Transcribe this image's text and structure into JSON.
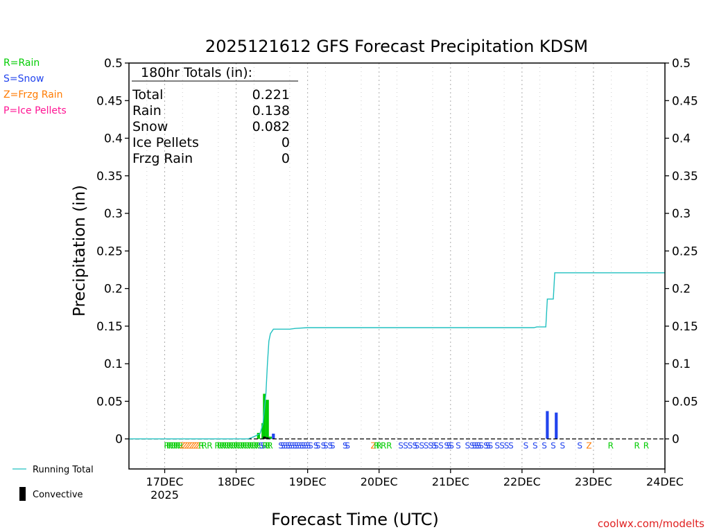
{
  "chart_data": {
    "type": "bar",
    "title": "2025121612 GFS Forecast Precipitation KDSM",
    "xlabel": "Forecast Time (UTC)",
    "ylabel": "Precipitation (in)",
    "ylim": [
      -0.04,
      0.5
    ],
    "y_ticks": [
      0,
      0.05,
      0.1,
      0.15,
      0.2,
      0.25,
      0.3,
      0.35,
      0.4,
      0.45,
      0.5
    ],
    "y_tick_labels": [
      "0",
      "0.05",
      "0.1",
      "0.15",
      "0.2",
      "0.25",
      "0.3",
      "0.35",
      "0.4",
      "0.45",
      "0.5"
    ],
    "x_unit": "hours since 2025-12-16 12 UTC",
    "xlim": [
      0,
      180
    ],
    "x_ticks": [
      {
        "x": 12,
        "label": "17DEC",
        "sublabel": "2025"
      },
      {
        "x": 36,
        "label": "18DEC",
        "sublabel": ""
      },
      {
        "x": 60,
        "label": "19DEC",
        "sublabel": ""
      },
      {
        "x": 84,
        "label": "20DEC",
        "sublabel": ""
      },
      {
        "x": 108,
        "label": "21DEC",
        "sublabel": ""
      },
      {
        "x": 132,
        "label": "22DEC",
        "sublabel": ""
      },
      {
        "x": 156,
        "label": "23DEC",
        "sublabel": ""
      },
      {
        "x": 180,
        "label": "24DEC",
        "sublabel": ""
      }
    ],
    "grid": true,
    "series": [
      {
        "name": "Running Total",
        "kind": "line",
        "color": "#20c0c0",
        "points": [
          [
            0,
            0
          ],
          [
            40,
            0
          ],
          [
            42,
            0.003
          ],
          [
            43,
            0.005
          ],
          [
            44,
            0.007
          ],
          [
            45,
            0.02
          ],
          [
            46,
            0.06
          ],
          [
            46.5,
            0.1
          ],
          [
            47,
            0.13
          ],
          [
            47.5,
            0.14
          ],
          [
            48.5,
            0.146
          ],
          [
            54,
            0.146
          ],
          [
            56,
            0.147
          ],
          [
            60,
            0.148
          ],
          [
            120,
            0.148
          ],
          [
            136,
            0.148
          ],
          [
            137,
            0.149
          ],
          [
            140,
            0.149
          ],
          [
            140.5,
            0.186
          ],
          [
            142.5,
            0.186
          ],
          [
            143,
            0.221
          ],
          [
            180,
            0.221
          ]
        ]
      },
      {
        "name": "Rain",
        "kind": "bar",
        "color": "#00cc00",
        "bars": [
          [
            43.5,
            0.008
          ],
          [
            45,
            0.021
          ],
          [
            45.5,
            0.06
          ],
          [
            46.5,
            0.052
          ],
          [
            47.5,
            0.003
          ]
        ]
      },
      {
        "name": "Snow",
        "kind": "bar",
        "color": "#2244ee",
        "bars": [
          [
            48.5,
            0.007
          ],
          [
            140.5,
            0.037
          ],
          [
            143.5,
            0.035
          ]
        ]
      },
      {
        "name": "Convective",
        "kind": "bar",
        "color": "#000000",
        "bars": [
          [
            45.5,
            0.003
          ],
          [
            46.5,
            0.002
          ]
        ]
      }
    ],
    "ptype_strip": {
      "colors": {
        "R": "#00cc00",
        "S": "#2244ee",
        "Z": "#ff7a00",
        "P": "#ff1493"
      },
      "marks": [
        {
          "x": 12.7,
          "t": "R"
        },
        {
          "x": 13.5,
          "t": "R"
        },
        {
          "x": 14.2,
          "t": "R"
        },
        {
          "x": 15.0,
          "t": "R"
        },
        {
          "x": 15.8,
          "t": "R"
        },
        {
          "x": 16.5,
          "t": "R"
        },
        {
          "x": 17.3,
          "t": "R"
        },
        {
          "x": 18.0,
          "t": "Z"
        },
        {
          "x": 18.8,
          "t": "Z"
        },
        {
          "x": 19.6,
          "t": "Z"
        },
        {
          "x": 20.3,
          "t": "Z"
        },
        {
          "x": 21.1,
          "t": "Z"
        },
        {
          "x": 21.8,
          "t": "Z"
        },
        {
          "x": 22.6,
          "t": "Z"
        },
        {
          "x": 23.3,
          "t": "Z"
        },
        {
          "x": 24.3,
          "t": "R"
        },
        {
          "x": 25.3,
          "t": "R"
        },
        {
          "x": 27.1,
          "t": "R"
        },
        {
          "x": 29.7,
          "t": "R"
        },
        {
          "x": 30.5,
          "t": "R"
        },
        {
          "x": 31.3,
          "t": "R"
        },
        {
          "x": 32.0,
          "t": "R"
        },
        {
          "x": 32.8,
          "t": "R"
        },
        {
          "x": 33.6,
          "t": "R"
        },
        {
          "x": 34.3,
          "t": "R"
        },
        {
          "x": 35.1,
          "t": "R"
        },
        {
          "x": 35.9,
          "t": "R"
        },
        {
          "x": 36.6,
          "t": "R"
        },
        {
          "x": 37.4,
          "t": "R"
        },
        {
          "x": 38.2,
          "t": "R"
        },
        {
          "x": 38.9,
          "t": "R"
        },
        {
          "x": 39.7,
          "t": "R"
        },
        {
          "x": 40.5,
          "t": "R"
        },
        {
          "x": 41.2,
          "t": "R"
        },
        {
          "x": 42.0,
          "t": "R"
        },
        {
          "x": 42.8,
          "t": "R"
        },
        {
          "x": 43.5,
          "t": "R"
        },
        {
          "x": 44.3,
          "t": "S"
        },
        {
          "x": 45.1,
          "t": "S"
        },
        {
          "x": 45.8,
          "t": "R"
        },
        {
          "x": 46.6,
          "t": "R"
        },
        {
          "x": 47.4,
          "t": "R"
        },
        {
          "x": 51.0,
          "t": "S"
        },
        {
          "x": 51.7,
          "t": "S"
        },
        {
          "x": 52.5,
          "t": "S"
        },
        {
          "x": 53.3,
          "t": "S"
        },
        {
          "x": 54.0,
          "t": "S"
        },
        {
          "x": 54.8,
          "t": "S"
        },
        {
          "x": 55.6,
          "t": "S"
        },
        {
          "x": 56.3,
          "t": "S"
        },
        {
          "x": 57.1,
          "t": "S"
        },
        {
          "x": 57.9,
          "t": "S"
        },
        {
          "x": 58.6,
          "t": "S"
        },
        {
          "x": 59.4,
          "t": "S"
        },
        {
          "x": 60.2,
          "t": "S"
        },
        {
          "x": 61.0,
          "t": "S"
        },
        {
          "x": 62.8,
          "t": "S"
        },
        {
          "x": 63.5,
          "t": "S"
        },
        {
          "x": 65.3,
          "t": "S"
        },
        {
          "x": 66.1,
          "t": "S"
        },
        {
          "x": 67.6,
          "t": "S"
        },
        {
          "x": 68.4,
          "t": "S"
        },
        {
          "x": 72.6,
          "t": "S"
        },
        {
          "x": 73.4,
          "t": "S"
        },
        {
          "x": 82.1,
          "t": "Z"
        },
        {
          "x": 83.2,
          "t": "R"
        },
        {
          "x": 84.0,
          "t": "R"
        },
        {
          "x": 85.5,
          "t": "R"
        },
        {
          "x": 87.4,
          "t": "R"
        },
        {
          "x": 91.3,
          "t": "S"
        },
        {
          "x": 92.9,
          "t": "S"
        },
        {
          "x": 94.4,
          "t": "S"
        },
        {
          "x": 96.0,
          "t": "S"
        },
        {
          "x": 96.7,
          "t": "S"
        },
        {
          "x": 98.3,
          "t": "S"
        },
        {
          "x": 99.8,
          "t": "S"
        },
        {
          "x": 101.3,
          "t": "S"
        },
        {
          "x": 102.5,
          "t": "S"
        },
        {
          "x": 103.2,
          "t": "S"
        },
        {
          "x": 104.8,
          "t": "S"
        },
        {
          "x": 106.7,
          "t": "S"
        },
        {
          "x": 107.5,
          "t": "S"
        },
        {
          "x": 108.3,
          "t": "S"
        },
        {
          "x": 110.6,
          "t": "S"
        },
        {
          "x": 113.7,
          "t": "S"
        },
        {
          "x": 115.2,
          "t": "S"
        },
        {
          "x": 116.0,
          "t": "S"
        },
        {
          "x": 116.8,
          "t": "S"
        },
        {
          "x": 117.5,
          "t": "S"
        },
        {
          "x": 118.3,
          "t": "S"
        },
        {
          "x": 119.9,
          "t": "S"
        },
        {
          "x": 120.6,
          "t": "S"
        },
        {
          "x": 121.4,
          "t": "S"
        },
        {
          "x": 123.7,
          "t": "S"
        },
        {
          "x": 125.3,
          "t": "S"
        },
        {
          "x": 126.8,
          "t": "S"
        },
        {
          "x": 128.3,
          "t": "S"
        },
        {
          "x": 133.3,
          "t": "S"
        },
        {
          "x": 136.4,
          "t": "S"
        },
        {
          "x": 139.5,
          "t": "S"
        },
        {
          "x": 142.5,
          "t": "S"
        },
        {
          "x": 145.6,
          "t": "S"
        },
        {
          "x": 151.4,
          "t": "S"
        },
        {
          "x": 154.5,
          "t": "Z"
        },
        {
          "x": 161.8,
          "t": "R"
        },
        {
          "x": 170.6,
          "t": "R"
        },
        {
          "x": 173.7,
          "t": "R"
        }
      ]
    }
  },
  "legend_left": {
    "items": [
      {
        "label": "R=Rain",
        "color": "#00cc00"
      },
      {
        "label": "S=Snow",
        "color": "#2244ee"
      },
      {
        "label": "Z=Frzg Rain",
        "color": "#ff7a00"
      },
      {
        "label": "P=Ice Pellets",
        "color": "#ff1493"
      }
    ]
  },
  "totals": {
    "heading": "180hr Totals (in):",
    "rows": [
      {
        "label": "Total",
        "value": "0.221"
      },
      {
        "label": "Rain",
        "value": "0.138"
      },
      {
        "label": "Snow",
        "value": "0.082"
      },
      {
        "label": "Ice Pellets",
        "value": "0"
      },
      {
        "label": "Frzg Rain",
        "value": "0"
      }
    ]
  },
  "bottom_legend": {
    "running_total_label": "Running Total",
    "convective_label": "Convective"
  },
  "credit": "coolwx.com/modelts"
}
